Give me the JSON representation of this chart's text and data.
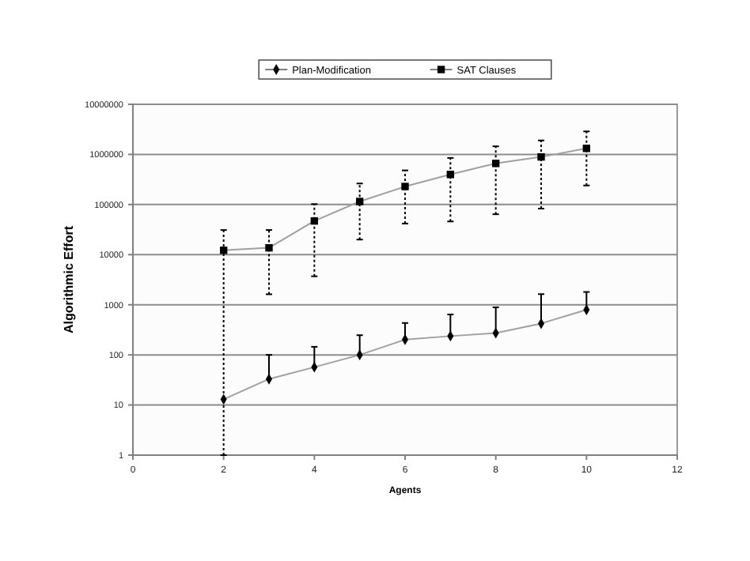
{
  "chart_data": {
    "type": "line",
    "xlabel": "Agents",
    "ylabel": "Algorithmic Effort",
    "x": [
      2,
      3,
      4,
      5,
      6,
      7,
      8,
      9,
      10
    ],
    "xlim": [
      0,
      12
    ],
    "xticks": [
      0,
      2,
      4,
      6,
      8,
      10,
      12
    ],
    "log": "y",
    "ylim": [
      1,
      10000000
    ],
    "yticks": [
      1,
      10,
      100,
      1000,
      10000,
      100000,
      1000000,
      10000000
    ],
    "grid": "y",
    "legend": "top",
    "series": [
      {
        "name": "Plan-Modification",
        "color": "#000000",
        "marker": "diamond",
        "values": [
          13,
          33,
          57,
          100,
          202,
          237,
          273,
          423,
          795
        ],
        "errors": [
          null,
          [
            33,
            100
          ],
          [
            57,
            145
          ],
          [
            100,
            247
          ],
          [
            202,
            433
          ],
          [
            237,
            640
          ],
          [
            273,
            890
          ],
          [
            423,
            1630
          ],
          [
            795,
            1800
          ]
        ]
      },
      {
        "name": "SAT Clauses",
        "color": "#000000",
        "marker": "square",
        "values": [
          12200,
          13700,
          47000,
          115000,
          229000,
          398000,
          661000,
          891000,
          1320000
        ],
        "errors": [
          [
            1,
            31000
          ],
          [
            1620,
            31000
          ],
          [
            3700,
            102000
          ],
          [
            20000,
            263000
          ],
          [
            41700,
            480000
          ],
          [
            46000,
            851000
          ],
          [
            64000,
            1450000
          ],
          [
            83000,
            1900000
          ],
          [
            240000,
            2880000
          ]
        ]
      }
    ]
  }
}
